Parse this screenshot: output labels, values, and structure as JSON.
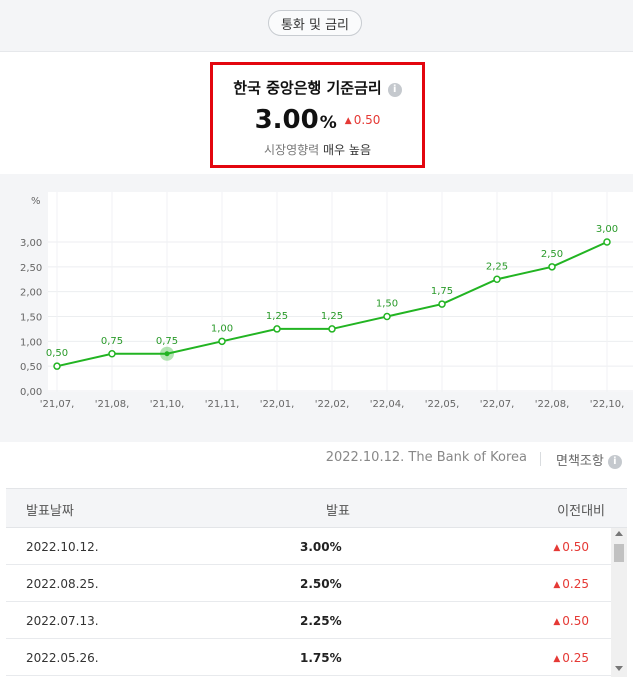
{
  "header": {
    "pill_label": "통화 및 금리"
  },
  "rate": {
    "title": "한국 중앙은행 기준금리",
    "info_icon": "i",
    "value": "3.00",
    "unit": "%",
    "change_arrow": "▲",
    "change": "0.50",
    "influence_prefix": "시장영향력",
    "influence_level": "매우 높음"
  },
  "chart_data": {
    "type": "line",
    "title": "",
    "xlabel": "",
    "ylabel": "%",
    "ylim": [
      0,
      3.0
    ],
    "yticks": [
      "0.00",
      "0.50",
      "1.00",
      "1.50",
      "2.00",
      "2.50",
      "3.00"
    ],
    "grid": true,
    "categories": [
      "'21.07.",
      "'21.08.",
      "'21.10.",
      "'21.11.",
      "'22.01.",
      "'22.02.",
      "'22.04.",
      "'22.05.",
      "'22.07.",
      "'22.08.",
      "'22.10."
    ],
    "values": [
      0.5,
      0.75,
      0.75,
      1.0,
      1.25,
      1.25,
      1.5,
      1.75,
      2.25,
      2.5,
      3.0
    ],
    "point_labels": [
      "0.50",
      "0.75",
      "0.75",
      "1.00",
      "1.25",
      "1.25",
      "1.50",
      "1.75",
      "2.25",
      "2.50",
      "3.00"
    ],
    "highlighted_index": 2,
    "line_color": "#22b422"
  },
  "source": {
    "text": "2022.10.12. The Bank of Korea",
    "disclaimer": "면책조항"
  },
  "table": {
    "headers": {
      "date": "발표날짜",
      "value": "발표",
      "change": "이전대비"
    },
    "rows": [
      {
        "date": "2022.10.12.",
        "value": "3.00%",
        "arrow": "▲",
        "change": "0.50"
      },
      {
        "date": "2022.08.25.",
        "value": "2.50%",
        "arrow": "▲",
        "change": "0.25"
      },
      {
        "date": "2022.07.13.",
        "value": "2.25%",
        "arrow": "▲",
        "change": "0.50"
      },
      {
        "date": "2022.05.26.",
        "value": "1.75%",
        "arrow": "▲",
        "change": "0.25"
      }
    ]
  },
  "colors": {
    "accent_red": "#e53935",
    "highlight_border": "#e3060f",
    "line_green": "#22b422"
  }
}
